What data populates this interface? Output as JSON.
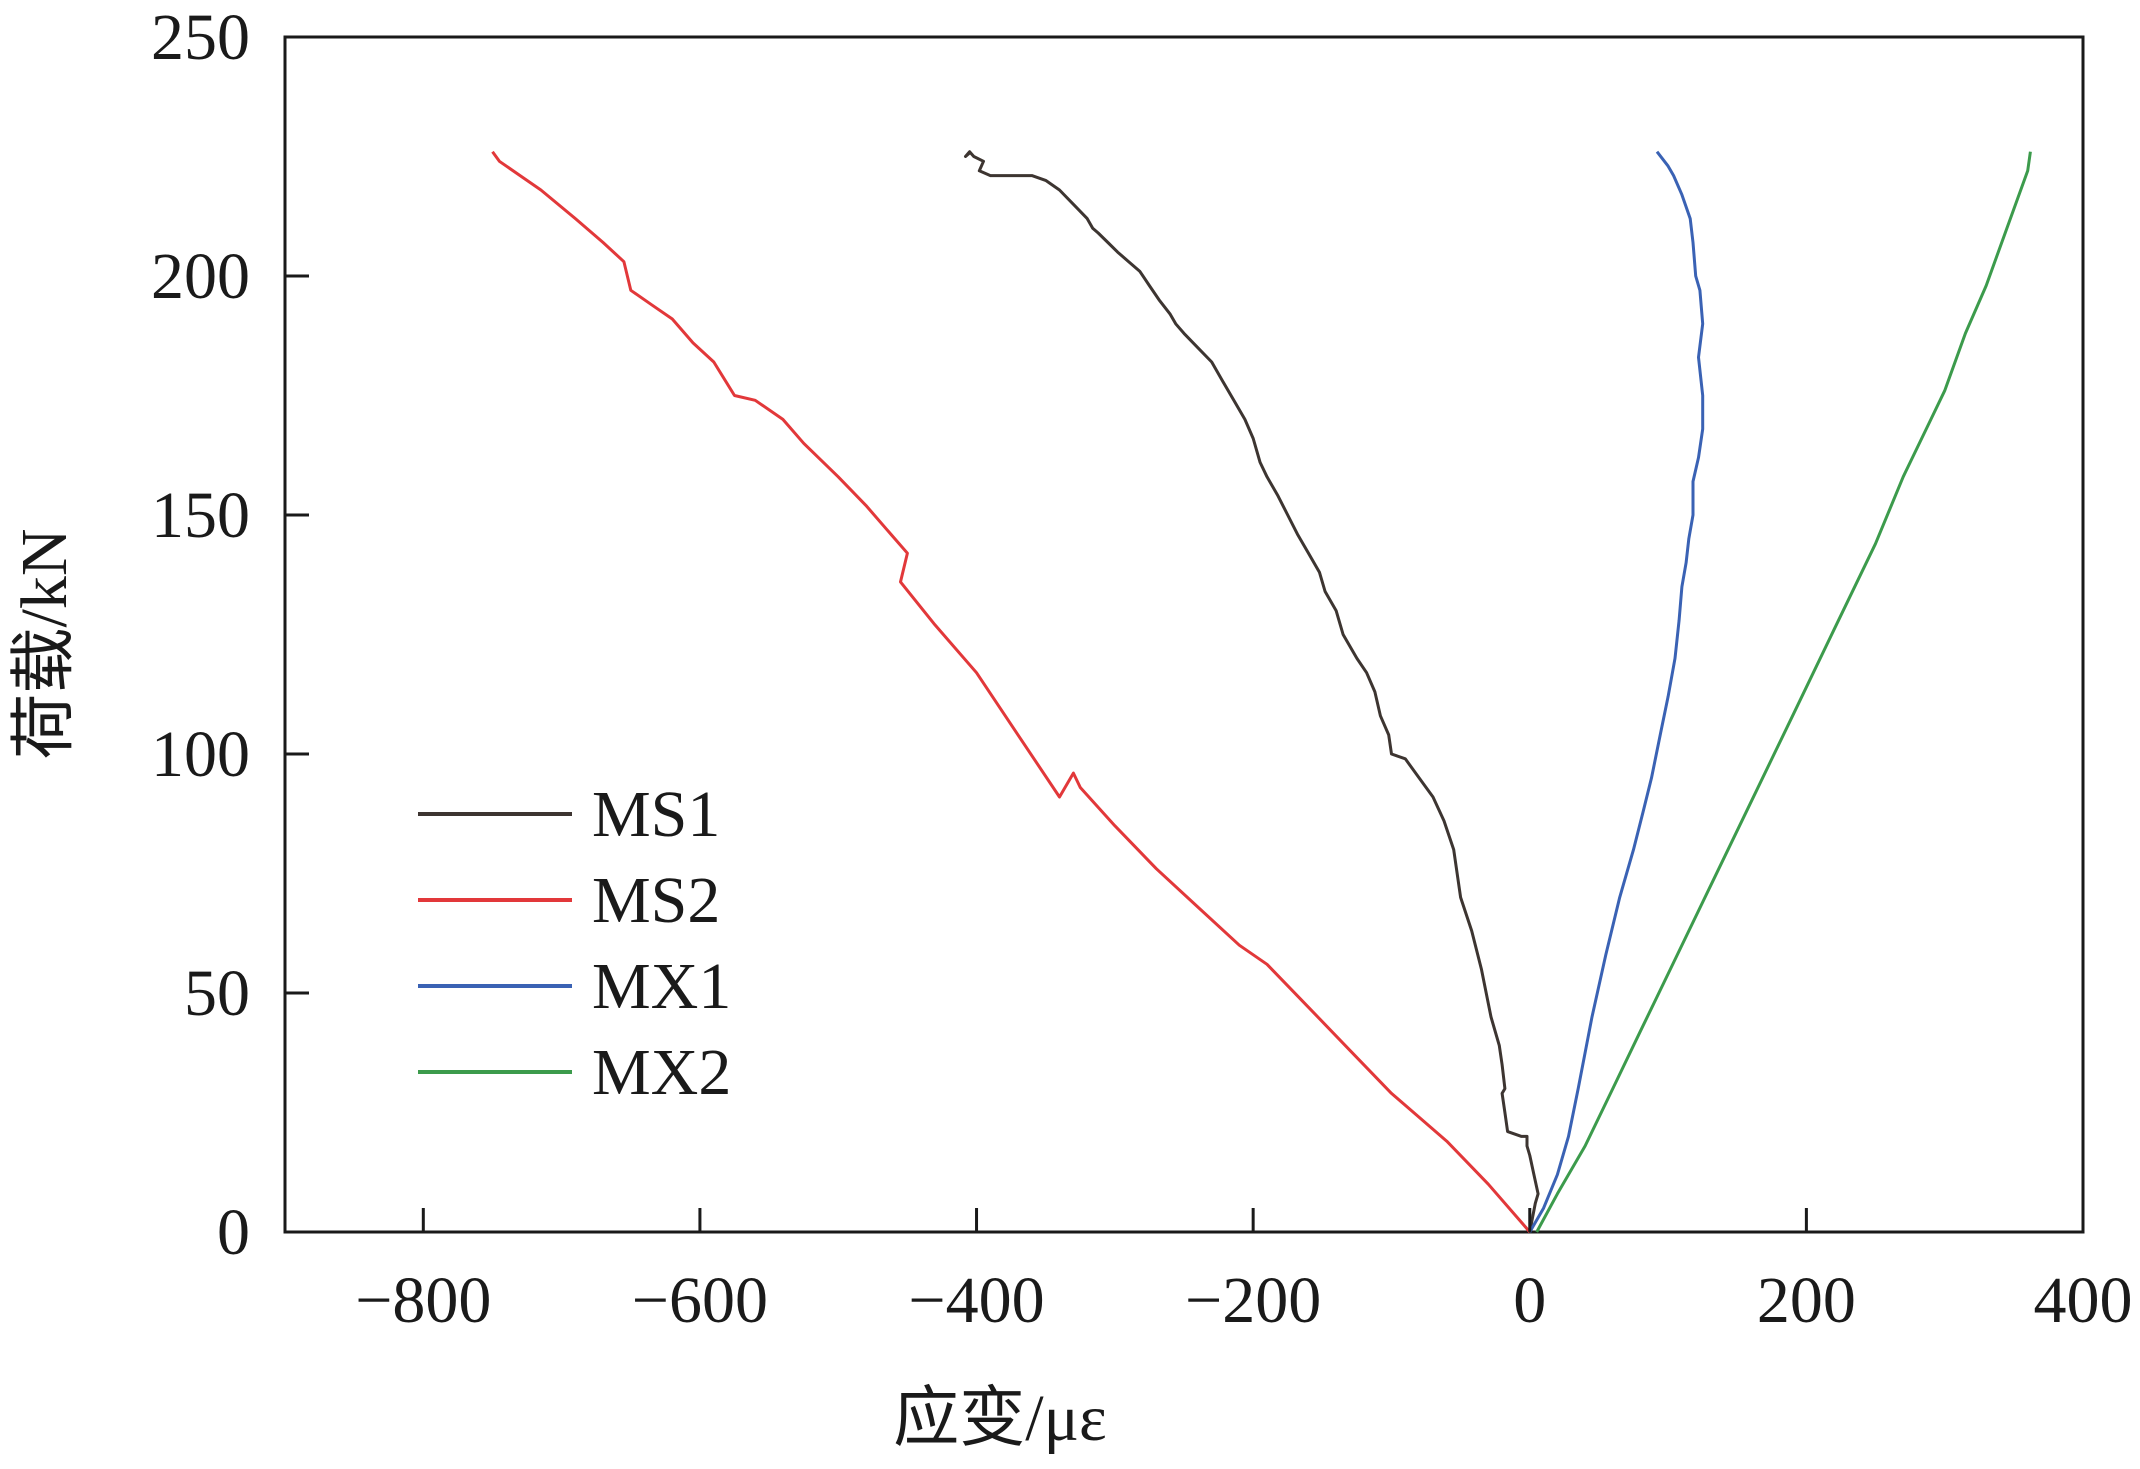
{
  "chart_data": {
    "type": "line",
    "xlabel": "应变/με",
    "ylabel": "荷载/kN",
    "xlim": [
      -900,
      400
    ],
    "ylim": [
      0,
      250
    ],
    "x_ticks": [
      -800,
      -600,
      -400,
      -200,
      0,
      200,
      400
    ],
    "x_tick_labels": [
      "−800",
      "−600",
      "−400",
      "−200",
      "0",
      "200",
      "400"
    ],
    "y_ticks": [
      0,
      50,
      100,
      150,
      200,
      250
    ],
    "y_tick_labels": [
      "0",
      "50",
      "100",
      "150",
      "200",
      "250"
    ],
    "grid": false,
    "legend_position": "lower-left",
    "series": [
      {
        "name": "MS1",
        "color": "#3d3531",
        "x": [
          0,
          2,
          4,
          6,
          3,
          0,
          -2,
          -2,
          -6,
          -16,
          -18,
          -20,
          -18,
          -20,
          -22,
          -28,
          -35,
          -42,
          -50,
          -55,
          -62,
          -70,
          -80,
          -90,
          -100,
          -102,
          -108,
          -112,
          -118,
          -125,
          -135,
          -140,
          -148,
          -152,
          -160,
          -168,
          -175,
          -182,
          -190,
          -195,
          -200,
          -206,
          -214,
          -222,
          -230,
          -240,
          -250,
          -256,
          -260,
          -268,
          -275,
          -282,
          -290,
          -298,
          -305,
          -312,
          -316,
          -320,
          -330,
          -340,
          -350,
          -360,
          -370,
          -380,
          -390,
          -398,
          -395,
          -402,
          -405,
          -408,
          -404
        ],
        "y": [
          0,
          3,
          6,
          8,
          12,
          16,
          18,
          20,
          20,
          21,
          25,
          29,
          30,
          35,
          39,
          45,
          55,
          63,
          70,
          80,
          86,
          91,
          95,
          99,
          100,
          104,
          108,
          113,
          117,
          120,
          125,
          130,
          134,
          138,
          142,
          146,
          150,
          154,
          158,
          161,
          166,
          170,
          174,
          178,
          182,
          185,
          188,
          190,
          192,
          195,
          198,
          201,
          203,
          205,
          207,
          209,
          210,
          212,
          215,
          218,
          220,
          221,
          221,
          221,
          221,
          222,
          224,
          225,
          226,
          225,
          226
        ]
      },
      {
        "name": "MS2",
        "color": "#e2383a",
        "x": [
          0,
          -30,
          -60,
          -80,
          -100,
          -130,
          -160,
          -190,
          -210,
          -240,
          -270,
          -300,
          -325,
          -330,
          -340,
          -370,
          -400,
          -430,
          -455,
          -450,
          -465,
          -480,
          -500,
          -525,
          -540,
          -560,
          -575,
          -590,
          -605,
          -620,
          -635,
          -650,
          -655,
          -670,
          -690,
          -715,
          -730,
          -745,
          -750
        ],
        "y": [
          0,
          10,
          19,
          24,
          29,
          38,
          47,
          56,
          60,
          68,
          76,
          85,
          93,
          96,
          91,
          104,
          117,
          127,
          136,
          142,
          147,
          152,
          158,
          165,
          170,
          174,
          175,
          182,
          186,
          191,
          194,
          197,
          203,
          207,
          212,
          218,
          221,
          224,
          226
        ]
      },
      {
        "name": "MX1",
        "color": "#3a62b4",
        "x": [
          0,
          10,
          20,
          28,
          35,
          45,
          55,
          65,
          75,
          82,
          88,
          95,
          100,
          105,
          108,
          110,
          113,
          115,
          118,
          118,
          122,
          125,
          125,
          122,
          125,
          123,
          120,
          118,
          116,
          110,
          104,
          100,
          92
        ],
        "y": [
          0,
          5,
          12,
          20,
          30,
          45,
          58,
          70,
          80,
          88,
          95,
          105,
          112,
          120,
          128,
          135,
          140,
          145,
          150,
          157,
          162,
          168,
          175,
          183,
          190,
          197,
          200,
          207,
          212,
          217,
          221,
          223,
          226
        ]
      },
      {
        "name": "MX2",
        "color": "#3c9b4c",
        "x": [
          5,
          20,
          40,
          60,
          80,
          100,
          130,
          160,
          190,
          220,
          250,
          270,
          290,
          300,
          315,
          330,
          345,
          360,
          362
        ],
        "y": [
          0,
          8,
          18,
          30,
          42,
          54,
          72,
          90,
          108,
          126,
          144,
          158,
          170,
          176,
          188,
          198,
          210,
          222,
          226
        ]
      }
    ]
  }
}
